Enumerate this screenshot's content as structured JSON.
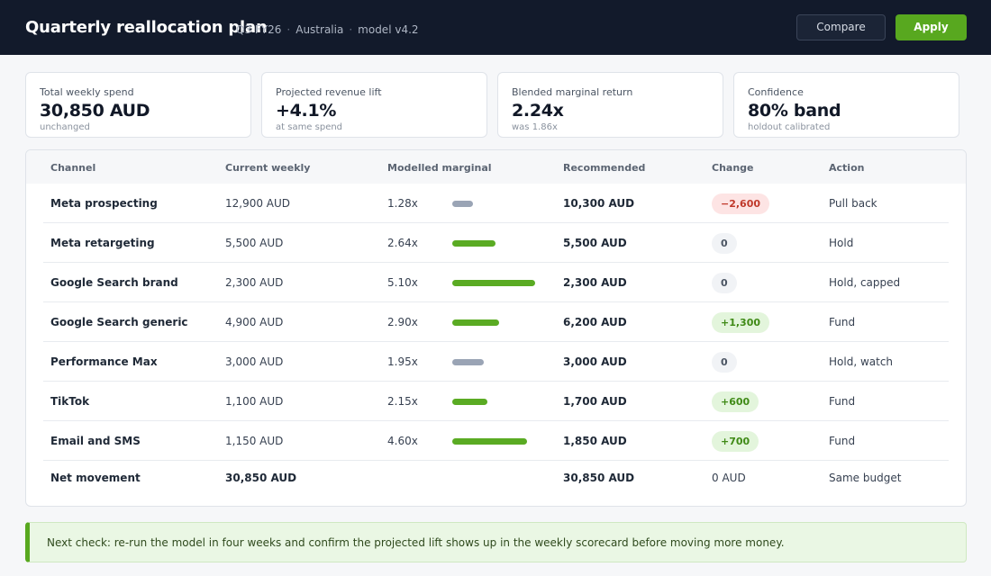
{
  "header": {
    "title": "Quarterly reallocation plan",
    "meta": [
      "Q3 FY26",
      "Australia",
      "model v4.2"
    ],
    "compare_label": "Compare",
    "apply_label": "Apply"
  },
  "kpis": [
    {
      "label": "Total weekly spend",
      "value": "30,850 AUD",
      "sub": "unchanged"
    },
    {
      "label": "Projected revenue lift",
      "value": "+4.1%",
      "sub": "at same spend"
    },
    {
      "label": "Blended marginal return",
      "value": "2.24x",
      "sub": "was 1.86x"
    },
    {
      "label": "Confidence",
      "value": "80% band",
      "sub": "holdout calibrated"
    }
  ],
  "table": {
    "columns": [
      "Channel",
      "Current weekly",
      "Modelled marginal",
      "Recommended",
      "Change",
      "Action"
    ],
    "rows": [
      {
        "channel": "Meta prospecting",
        "current": "12,900 AUD",
        "marginal": "1.28x",
        "marginal_value": 1.28,
        "recommended": "10,300 AUD",
        "change": "−2,600",
        "action": "Pull back"
      },
      {
        "channel": "Meta retargeting",
        "current": "5,500 AUD",
        "marginal": "2.64x",
        "marginal_value": 2.64,
        "recommended": "5,500 AUD",
        "change": "0",
        "action": "Hold"
      },
      {
        "channel": "Google Search brand",
        "current": "2,300 AUD",
        "marginal": "5.10x",
        "marginal_value": 5.1,
        "recommended": "2,300 AUD",
        "change": "0",
        "action": "Hold, capped"
      },
      {
        "channel": "Google Search generic",
        "current": "4,900 AUD",
        "marginal": "2.90x",
        "marginal_value": 2.9,
        "recommended": "6,200 AUD",
        "change": "+1,300",
        "action": "Fund"
      },
      {
        "channel": "Performance Max",
        "current": "3,000 AUD",
        "marginal": "1.95x",
        "marginal_value": 1.95,
        "recommended": "3,000 AUD",
        "change": "0",
        "action": "Hold, watch"
      },
      {
        "channel": "TikTok",
        "current": "1,100 AUD",
        "marginal": "2.15x",
        "marginal_value": 2.15,
        "recommended": "1,700 AUD",
        "change": "+600",
        "action": "Fund"
      },
      {
        "channel": "Email and SMS",
        "current": "1,150 AUD",
        "marginal": "4.60x",
        "marginal_value": 4.6,
        "recommended": "1,850 AUD",
        "change": "+700",
        "action": "Fund"
      }
    ],
    "total": {
      "label": "Net movement",
      "current": "30,850 AUD",
      "recommended": "30,850 AUD",
      "change": "0 AUD",
      "action": "Same budget"
    }
  },
  "colors": {
    "accent": "#58a81f",
    "negative": "#c0392b",
    "neutral_bar": "#9aa4b5",
    "header_bg": "#121a2b"
  },
  "note": "Next check: re-run the model in four weeks and confirm the projected lift shows up in the weekly scorecard before moving more money."
}
